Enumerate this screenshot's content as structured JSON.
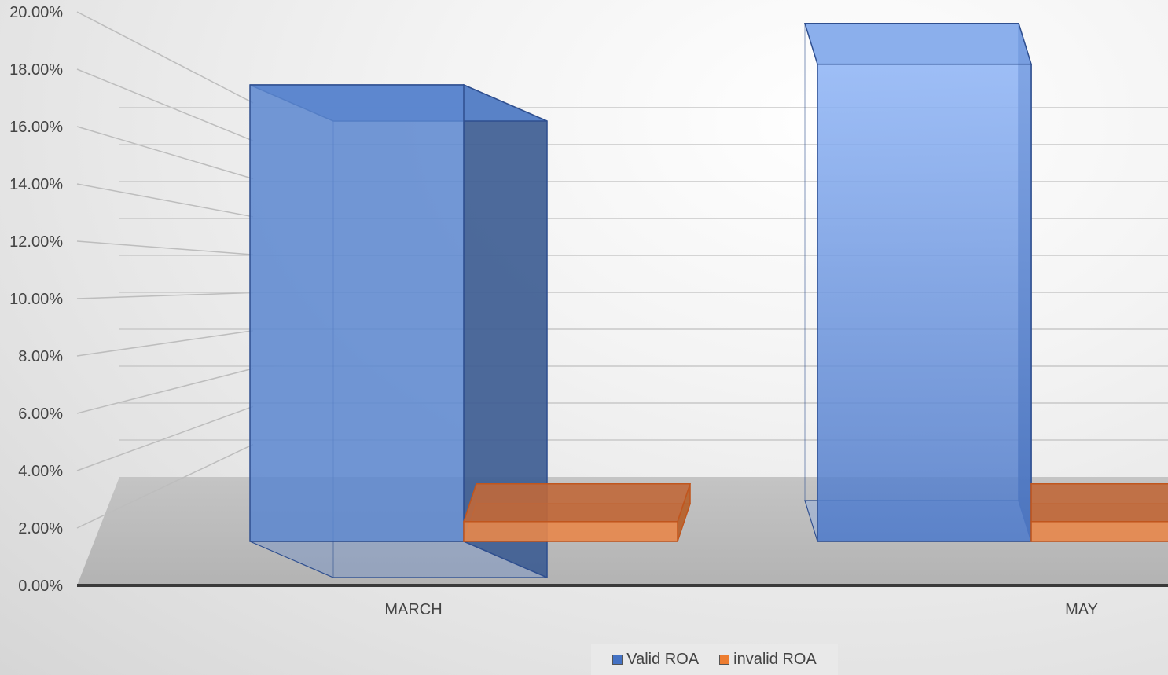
{
  "chart_data": {
    "type": "bar",
    "style": "3d-clustered-column",
    "categories": [
      "MARCH",
      "MAY"
    ],
    "series": [
      {
        "name": "Valid ROA",
        "values": [
          0.16,
          0.17
        ],
        "color": "#4472C4"
      },
      {
        "name": "invalid ROA",
        "values": [
          0.007,
          0.007
        ],
        "color": "#ED7D31"
      }
    ],
    "ylim": [
      0,
      0.2
    ],
    "yticks": [
      "0.00%",
      "2.00%",
      "4.00%",
      "6.00%",
      "8.00%",
      "10.00%",
      "12.00%",
      "14.00%",
      "16.00%",
      "18.00%",
      "20.00%"
    ],
    "grid": true,
    "legend_position": "bottom"
  }
}
